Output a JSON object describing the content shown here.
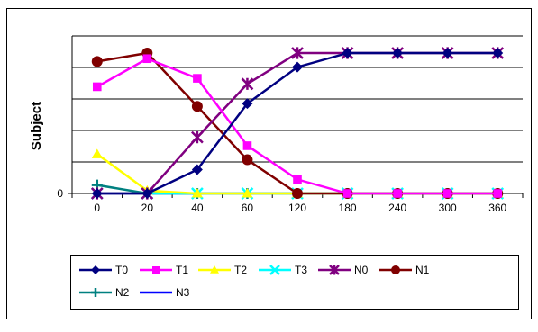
{
  "chart_data": {
    "type": "line",
    "title": "",
    "xlabel": "",
    "ylabel": "Subject",
    "categories": [
      "0",
      "20",
      "40",
      "60",
      "120",
      "180",
      "240",
      "300",
      "360"
    ],
    "y_tick_labels": [
      "0"
    ],
    "ylim": [
      0,
      100
    ],
    "grid": "horizontal",
    "legend_position": "bottom",
    "series": [
      {
        "name": "T0",
        "color": "#000080",
        "marker": "diamond",
        "values": [
          0,
          0,
          17,
          64,
          90,
          100,
          100,
          100,
          100
        ]
      },
      {
        "name": "T1",
        "color": "#ff00ff",
        "marker": "square",
        "values": [
          76,
          96,
          82,
          34,
          10,
          0,
          0,
          0,
          0
        ]
      },
      {
        "name": "T2",
        "color": "#ffff00",
        "marker": "triangle",
        "values": [
          28,
          2,
          0,
          0,
          0,
          0,
          0,
          0,
          0
        ]
      },
      {
        "name": "T3",
        "color": "#00ffff",
        "marker": "x",
        "values": [
          0,
          0,
          0,
          0,
          0,
          0,
          0,
          0,
          0
        ]
      },
      {
        "name": "N0",
        "color": "#800080",
        "marker": "star",
        "values": [
          0,
          0,
          40,
          78,
          100,
          100,
          100,
          100,
          100
        ]
      },
      {
        "name": "N1",
        "color": "#800000",
        "marker": "circle",
        "values": [
          94,
          100,
          62,
          24,
          0,
          0,
          0,
          0,
          0
        ]
      },
      {
        "name": "N2",
        "color": "#008080",
        "marker": "plus",
        "values": [
          6,
          0,
          0,
          0,
          0,
          0,
          0,
          0,
          0
        ]
      },
      {
        "name": "N3",
        "color": "#0000ff",
        "marker": "none",
        "values": [
          0,
          0,
          0,
          0,
          0,
          0,
          0,
          0,
          0
        ]
      }
    ]
  }
}
